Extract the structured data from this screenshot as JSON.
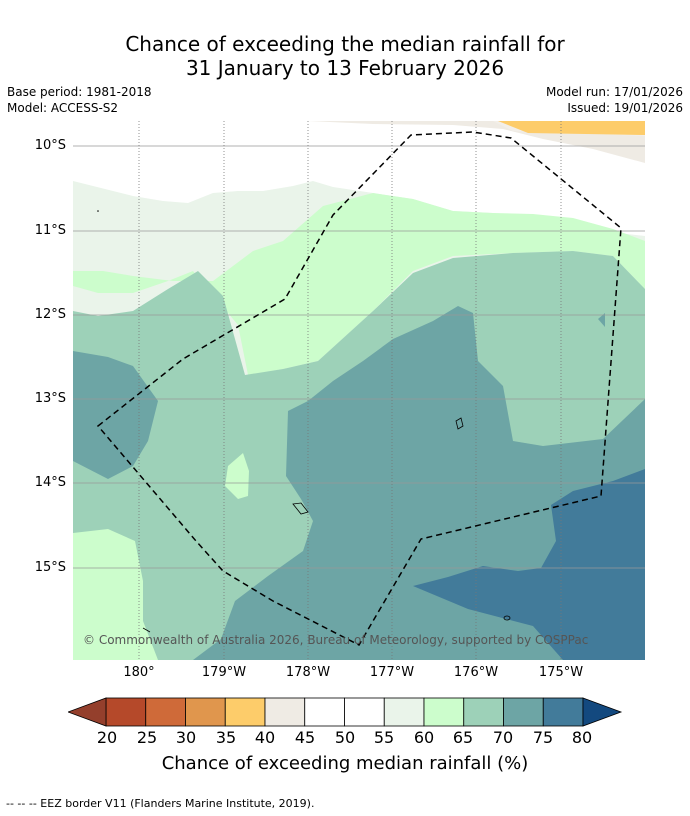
{
  "title_line1": "Chance of exceeding the median rainfall for",
  "title_line2": "31 January to 13 February 2026",
  "meta": {
    "base_period": "Base period: 1981-2018",
    "model": "Model: ACCESS-S2",
    "model_run": "Model run: 17/01/2026",
    "issued": "Issued: 19/01/2026"
  },
  "map": {
    "lat_labels": [
      "10°S",
      "11°S",
      "12°S",
      "13°S",
      "14°S",
      "15°S"
    ],
    "lon_labels": [
      "180°",
      "179°W",
      "178°W",
      "177°W",
      "176°W",
      "175°W"
    ],
    "copyright": "© Commonwealth of Australia 2026, Bureau of Meteorology, supported by COSPPac"
  },
  "colorbar": {
    "ticks": [
      "20",
      "25",
      "30",
      "35",
      "40",
      "45",
      "50",
      "55",
      "60",
      "65",
      "70",
      "75",
      "80"
    ],
    "colors": [
      "#b5492a",
      "#cf6a39",
      "#e0964d",
      "#fdcc6a",
      "#efebe4",
      "#ffffff",
      "#ffffff",
      "#eaf4ea",
      "#ccfdcc",
      "#9dd1b8",
      "#6da5a5",
      "#427b9a"
    ],
    "under_color": "#943f2c",
    "over_color": "#13497f",
    "label": "Chance of exceeding median rainfall (%)"
  },
  "footer": "-- -- -- EEZ border V11 (Flanders Marine Institute, 2019)."
}
